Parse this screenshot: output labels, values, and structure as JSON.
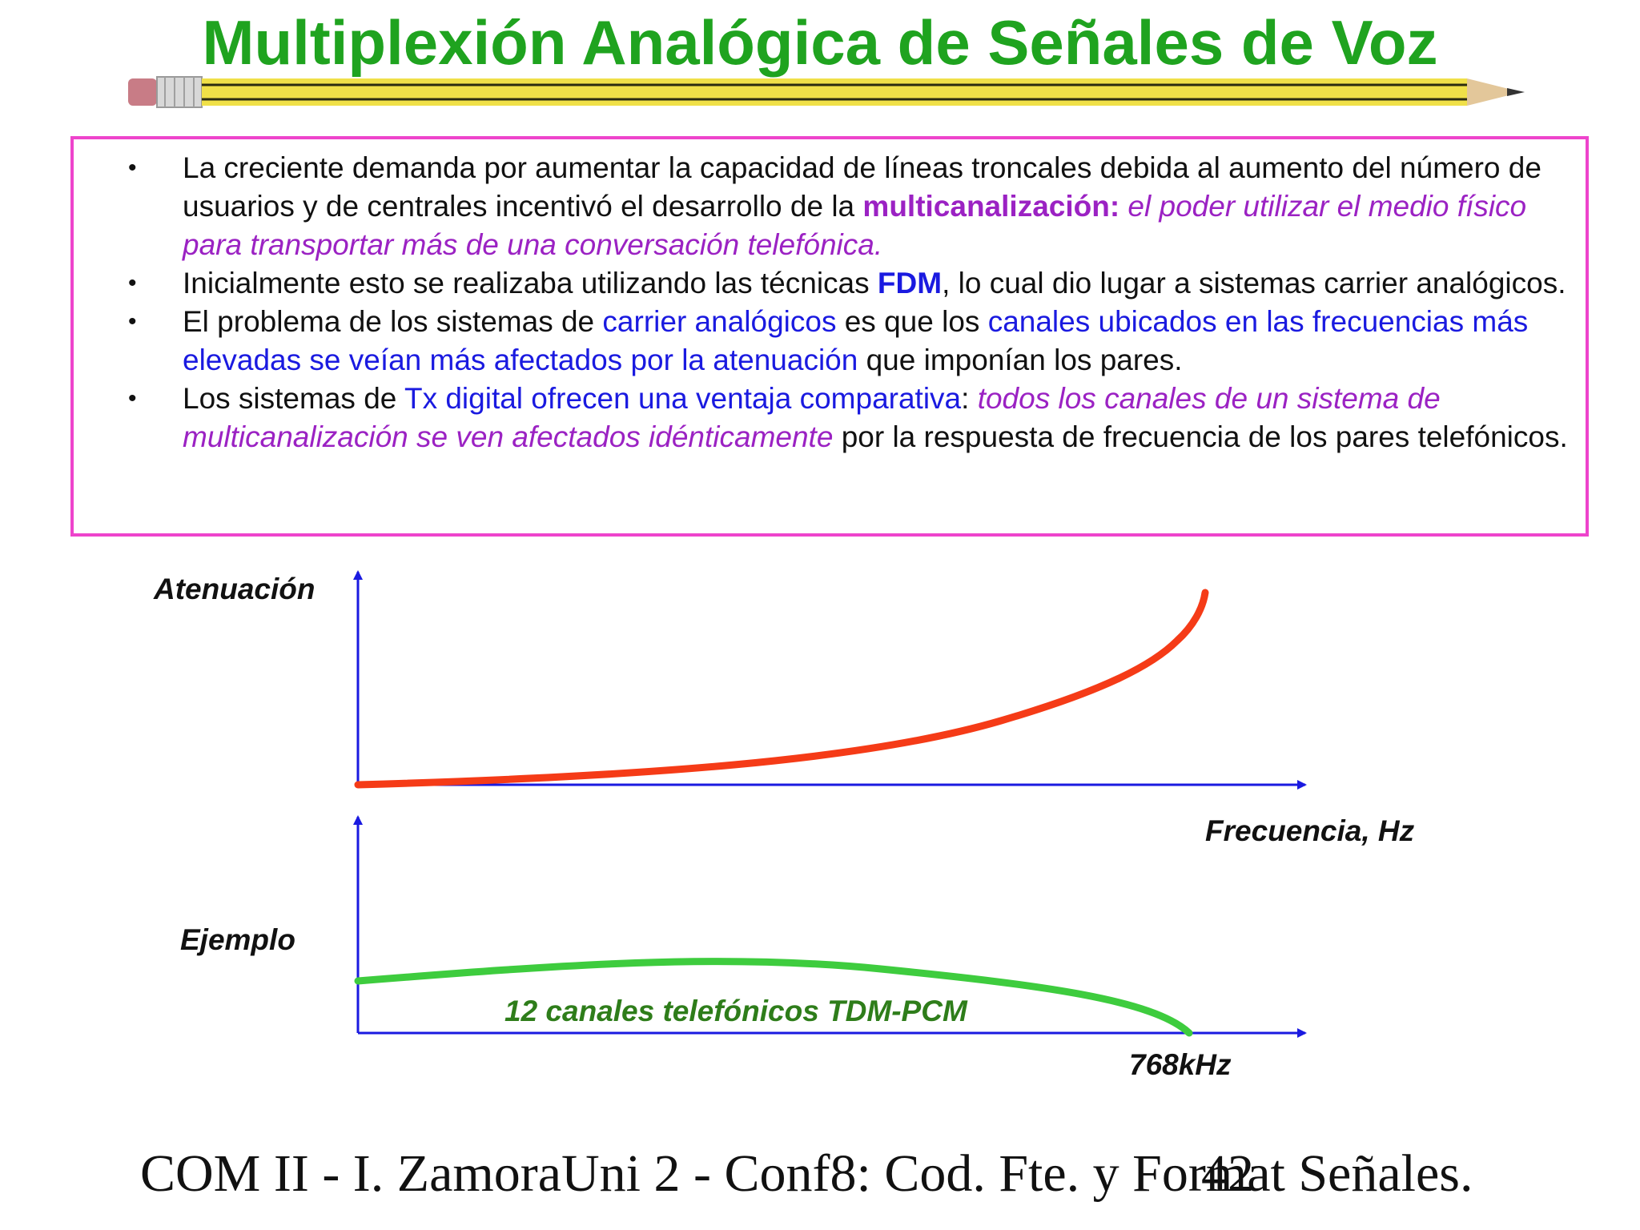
{
  "title": "Multiplexión Analógica de Señales de Voz",
  "bullets": [
    {
      "parts": [
        {
          "t": "La creciente demanda por aumentar la capacidad de líneas troncales debida al aumento del número de usuarios y de centrales incentivó el desarrollo de la ",
          "s": "normal"
        },
        {
          "t": "multicanalización:",
          "s": "purple-b"
        },
        {
          "t": " el poder utilizar el medio físico para transportar más de una conversación telefónica.",
          "s": "purple-i"
        }
      ]
    },
    {
      "parts": [
        {
          "t": "Inicialmente esto se realizaba utilizando las técnicas ",
          "s": "normal"
        },
        {
          "t": "FDM",
          "s": "blue-b"
        },
        {
          "t": ", lo cual dio lugar a sistemas carrier analógicos.",
          "s": "normal"
        }
      ]
    },
    {
      "parts": [
        {
          "t": "El problema de los sistemas de ",
          "s": "normal"
        },
        {
          "t": "carrier analógicos",
          "s": "blue"
        },
        {
          "t": " es que los ",
          "s": "normal"
        },
        {
          "t": "canales ubicados en las frecuencias más elevadas se veían más afectados por la atenuación",
          "s": "blue"
        },
        {
          "t": " que imponían los pares.",
          "s": "normal"
        }
      ]
    },
    {
      "parts": [
        {
          "t": "Los sistemas de ",
          "s": "normal"
        },
        {
          "t": "Tx digital ofrecen una ventaja comparativa",
          "s": "blue"
        },
        {
          "t": ": ",
          "s": "normal"
        },
        {
          "t": "todos los canales de un sistema de multicanalización se ven afectados idénticamente",
          "s": "purple-i"
        },
        {
          "t": " por la respuesta de frecuencia de los pares telefónicos.",
          "s": "normal"
        }
      ]
    }
  ],
  "diagram": {
    "top_ylabel": "Atenuación",
    "xlabel": "Frecuencia, Hz",
    "bottom_ylabel": "Ejemplo",
    "curve_label": "12 canales telefónicos TDM-PCM",
    "freq_mark": "768kHz"
  },
  "footer": {
    "text": "COM II - I. ZamoraUni 2 - Conf8: Cod. Fte. y Format Señales.",
    "page_number": "42"
  },
  "colors": {
    "title": "#1fa31f",
    "frame": "#ee44cc",
    "axis": "#1a1ae0",
    "attenuation_curve": "#f53b17",
    "example_curve": "#3ecc3e",
    "curve_label": "#2e7d1a"
  }
}
